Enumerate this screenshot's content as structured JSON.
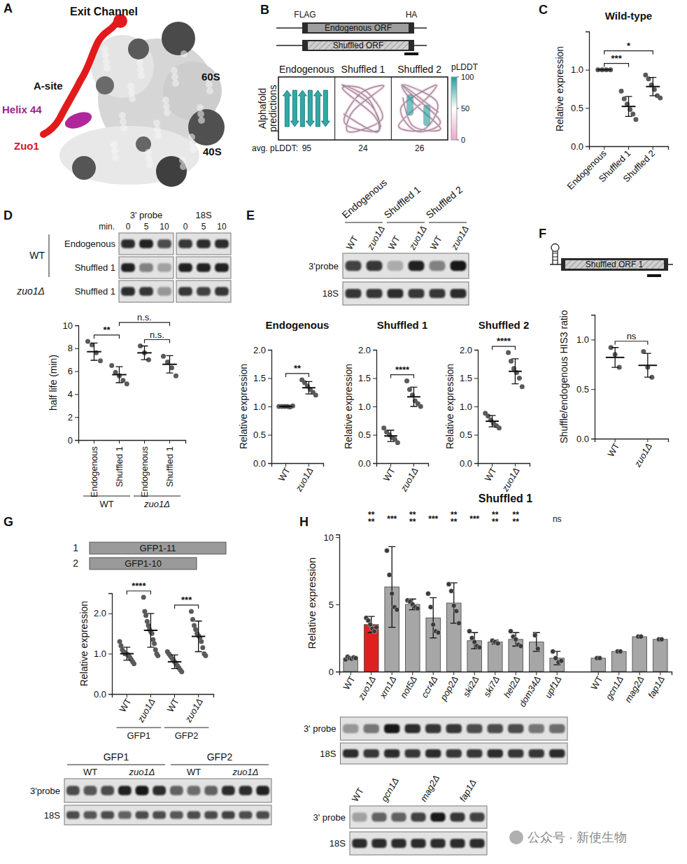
{
  "chart_data": [
    {
      "type": "dot",
      "title": "Wild-type",
      "y_label": "Relative expression",
      "categories": [
        "Endogenous",
        "Shuffled 1",
        "Shuffled 2"
      ],
      "points": [
        [
          1.0,
          1.0,
          1.0,
          1.0
        ],
        [
          0.72,
          0.62,
          0.55,
          0.48,
          0.42,
          0.35
        ],
        [
          0.93,
          0.88,
          0.8,
          0.74,
          0.66,
          0.63
        ]
      ],
      "mean": [
        1.0,
        0.52,
        0.78
      ],
      "sd": [
        0.0,
        0.13,
        0.12
      ],
      "ylim": [
        0,
        1.5
      ],
      "yticks": [
        {
          "value": 0,
          "label": "0.0"
        },
        {
          "value": 0.5,
          "label": "0.5"
        },
        {
          "value": 1,
          "label": "1.0"
        }
      ],
      "significance": [
        {
          "from": 0,
          "to": 1,
          "label": "***"
        },
        {
          "from": 0,
          "to": 2,
          "label": "*"
        }
      ]
    },
    {
      "type": "dot",
      "y_label": "half life (min)",
      "categories": [
        "Endogenous",
        "Shuffled 1",
        "Endogenous",
        "Shuffled 1"
      ],
      "groups": [
        {
          "label": "WT",
          "members": [
            0,
            1
          ]
        },
        {
          "label": "zuo1Δ",
          "members": [
            2,
            3
          ]
        }
      ],
      "points": [
        [
          8.6,
          8.3,
          7.6,
          6.9
        ],
        [
          6.5,
          5.9,
          5.6,
          5.2,
          4.9
        ],
        [
          8.2,
          7.6,
          7.0
        ],
        [
          7.3,
          6.8,
          6.3,
          5.6
        ]
      ],
      "mean": [
        7.7,
        5.7,
        7.6,
        6.6
      ],
      "sd": [
        0.75,
        0.7,
        0.6,
        0.75
      ],
      "ylim": [
        0,
        10
      ],
      "yticks": [
        0,
        2,
        4,
        6,
        8,
        10
      ],
      "significance": [
        {
          "from": 0,
          "to": 1,
          "label": "**"
        },
        {
          "from": 2,
          "to": 3,
          "label": "n.s."
        },
        {
          "from": 1,
          "to": 3,
          "label": "n.s."
        }
      ]
    },
    {
      "type": "dot",
      "title": "Endogenous",
      "y_label": "Relative expression",
      "categories": [
        "WT",
        "zuo1Δ"
      ],
      "points": [
        [
          1.0,
          1.0,
          1.0,
          1.0,
          0.99,
          1.01
        ],
        [
          1.47,
          1.42,
          1.36,
          1.3,
          1.25,
          1.2
        ]
      ],
      "mean": [
        1.0,
        1.33
      ],
      "sd": [
        0.01,
        0.11
      ],
      "ylim": [
        0,
        2
      ],
      "yticks": [
        {
          "value": 0,
          "label": "0.0"
        },
        {
          "value": 0.5,
          "label": "0.5"
        },
        {
          "value": 1,
          "label": "1.0"
        },
        {
          "value": 1.5,
          "label": "1.5"
        },
        {
          "value": 2,
          "label": "2.0"
        }
      ],
      "significance": [
        {
          "from": 0,
          "to": 1,
          "label": "**"
        }
      ]
    },
    {
      "type": "dot",
      "title": "Shuffled 1",
      "y_label": "Relative expression",
      "categories": [
        "WT",
        "zuo1Δ"
      ],
      "points": [
        [
          0.62,
          0.55,
          0.5,
          0.45,
          0.42,
          0.36
        ],
        [
          1.45,
          1.3,
          1.2,
          1.1,
          1.05,
          1.0
        ]
      ],
      "mean": [
        0.48,
        1.17
      ],
      "sd": [
        0.1,
        0.17
      ],
      "ylim": [
        0,
        2
      ],
      "yticks": [
        {
          "value": 0,
          "label": "0.0"
        },
        {
          "value": 0.5,
          "label": "0.5"
        },
        {
          "value": 1,
          "label": "1.0"
        },
        {
          "value": 1.5,
          "label": "1.5"
        },
        {
          "value": 2,
          "label": "2.0"
        }
      ],
      "significance": [
        {
          "from": 0,
          "to": 1,
          "label": "****"
        }
      ]
    },
    {
      "type": "dot",
      "title": "Shuffled 2",
      "y_label": "Relative expression",
      "categories": [
        "WT",
        "zuo1Δ"
      ],
      "points": [
        [
          0.88,
          0.83,
          0.76,
          0.7,
          0.66,
          0.62
        ],
        [
          1.95,
          1.8,
          1.67,
          1.6,
          1.5,
          1.35
        ]
      ],
      "mean": [
        0.74,
        1.62
      ],
      "sd": [
        0.1,
        0.22
      ],
      "ylim": [
        0,
        2
      ],
      "yticks": [
        {
          "value": 0,
          "label": "0.0"
        },
        {
          "value": 0.5,
          "label": "0.5"
        },
        {
          "value": 1,
          "label": "1.0"
        },
        {
          "value": 1.5,
          "label": "1.5"
        },
        {
          "value": 2,
          "label": "2.0"
        }
      ],
      "significance": [
        {
          "from": 0,
          "to": 1,
          "label": "****"
        }
      ]
    },
    {
      "type": "dot",
      "y_label": "Shuffle/endogenous HIS3 ratio",
      "categories": [
        "WT",
        "zuo1Δ"
      ],
      "points": [
        [
          0.92,
          0.85,
          0.72
        ],
        [
          0.88,
          0.72,
          0.62
        ]
      ],
      "mean": [
        0.82,
        0.74
      ],
      "sd": [
        0.1,
        0.12
      ],
      "ylim": [
        0,
        1.25
      ],
      "yticks": [
        {
          "value": 0,
          "label": "0.0"
        },
        {
          "value": 0.5,
          "label": "0.5"
        },
        {
          "value": 1,
          "label": "1.0"
        }
      ],
      "significance": [
        {
          "from": 0,
          "to": 1,
          "label": "ns"
        }
      ]
    },
    {
      "type": "dot",
      "y_label": "Relative expression",
      "categories": [
        "WT",
        "zuo1Δ",
        "WT",
        "zuo1Δ"
      ],
      "groups": [
        {
          "label": "GFP1",
          "members": [
            0,
            1
          ]
        },
        {
          "label": "GFP2",
          "members": [
            2,
            3
          ]
        }
      ],
      "points": [
        [
          1.3,
          1.2,
          1.1,
          1.05,
          1.0,
          1.0,
          0.98,
          0.95,
          0.9,
          0.85,
          0.8,
          0.75
        ],
        [
          2.4,
          2.05,
          1.95,
          1.8,
          1.7,
          1.6,
          1.55,
          1.5,
          1.35,
          1.25,
          1.1,
          1.0,
          0.95
        ],
        [
          1.05,
          1.0,
          0.95,
          0.9,
          0.85,
          0.8,
          0.75,
          0.7,
          0.65,
          0.6,
          0.55
        ],
        [
          2.05,
          1.85,
          1.7,
          1.6,
          1.5,
          1.45,
          1.4,
          1.3,
          1.15,
          1.0,
          0.95
        ]
      ],
      "mean": [
        1.0,
        1.58,
        0.8,
        1.43
      ],
      "sd": [
        0.16,
        0.42,
        0.17,
        0.38
      ],
      "ylim": [
        0,
        2.5
      ],
      "yticks": [
        {
          "value": 0,
          "label": "0.0"
        },
        {
          "value": 1,
          "label": "1.0"
        },
        {
          "value": 2,
          "label": "2.0"
        }
      ],
      "significance": [
        {
          "from": 0,
          "to": 1,
          "label": "****"
        },
        {
          "from": 2,
          "to": 3,
          "label": "***"
        }
      ]
    },
    {
      "type": "bar",
      "title": "Shuffled 1",
      "y_label": "Relative expression",
      "categories": [
        "WT",
        "zuo1Δ",
        "xrn1Δ",
        "not5Δ",
        "ccr4Δ",
        "pop2Δ",
        "ski2Δ",
        "ski7Δ",
        "hel2Δ",
        "dom34Δ",
        "upf1Δ",
        "WT",
        "gcn1Δ",
        "mag2Δ",
        "fap1Δ"
      ],
      "values": [
        1.0,
        3.5,
        6.3,
        5.0,
        4.0,
        5.1,
        2.3,
        2.2,
        2.4,
        2.2,
        1.0,
        1.0,
        1.5,
        2.6,
        2.4
      ],
      "error": [
        0.1,
        0.6,
        3.0,
        0.4,
        1.5,
        1.5,
        0.6,
        0.15,
        0.5,
        0.7,
        0.5,
        null,
        null,
        null,
        null
      ],
      "points": [
        [
          0.9,
          1.1,
          1.0,
          0.95,
          1.05,
          1.0
        ],
        [
          4.0,
          3.8,
          3.5,
          3.2,
          3.0,
          3.3
        ],
        [
          9.0,
          7.2,
          5.8,
          4.8,
          4.6
        ],
        [
          5.3,
          5.2,
          5.0,
          4.8,
          4.7
        ],
        [
          5.8,
          4.8,
          3.5,
          3.0,
          2.9
        ],
        [
          6.5,
          6.0,
          4.9,
          4.5,
          3.6
        ],
        [
          3.0,
          2.5,
          2.2,
          1.9,
          1.8
        ],
        [
          2.3,
          2.2,
          2.1
        ],
        [
          3.0,
          2.6,
          2.4,
          2.0,
          1.9
        ],
        [
          2.7,
          1.7
        ],
        [
          1.5,
          1.0,
          0.7,
          0.8
        ],
        [
          1.0,
          1.0
        ],
        [
          1.5,
          1.5
        ],
        [
          2.6,
          2.6
        ],
        [
          2.4,
          2.4
        ]
      ],
      "colors": [
        "#a6a6a6",
        "#e02020",
        "#a6a6a6",
        "#a6a6a6",
        "#a6a6a6",
        "#a6a6a6",
        "#a6a6a6",
        "#a6a6a6",
        "#a6a6a6",
        "#a6a6a6",
        "#a6a6a6",
        "#a6a6a6",
        "#a6a6a6",
        "#a6a6a6",
        "#a6a6a6"
      ],
      "ylim": [
        0,
        10.2
      ],
      "yticks": [
        0,
        5,
        10
      ],
      "significance": [
        {
          "at": 1,
          "label": "****"
        },
        {
          "at": 2,
          "label": "***"
        },
        {
          "at": 3,
          "label": "****"
        },
        {
          "at": 4,
          "label": "***"
        },
        {
          "at": 5,
          "label": "****"
        },
        {
          "at": 6,
          "label": "***"
        },
        {
          "at": 7,
          "label": "****"
        },
        {
          "at": 8,
          "label": "****"
        },
        {
          "at": 10,
          "label": "ns"
        }
      ]
    }
  ],
  "figure": {
    "panel_letters": [
      "A",
      "B",
      "C",
      "D",
      "E",
      "F",
      "G",
      "H"
    ],
    "panel_a": {
      "labels": {
        "exit_channel": "Exit Channel",
        "large_subunit": "60S",
        "a_site": "A-site",
        "helix": "Helix 44",
        "zuo1": "Zuo1",
        "small_subunit": "40S"
      }
    },
    "panel_b": {
      "construct": {
        "left_tag": "FLAG",
        "right_tag": "HA",
        "orfs": [
          "Endogenous ORF",
          "Shuffled ORF"
        ]
      },
      "predictions": {
        "label": "Alphafold predictions",
        "titles": [
          "Endogenous",
          "Shuffled 1",
          "Shuffled 2"
        ],
        "avg_label": "avg. pLDDT:",
        "avg_plddt": [
          95,
          24,
          26
        ],
        "colorbar": {
          "label": "pLDDT",
          "range": [
            0,
            100
          ],
          "ticks": [
            0,
            50,
            100
          ]
        }
      }
    },
    "panel_d_gel": {
      "column_heads": [
        "3' probe",
        "18S"
      ],
      "time_label": "min.",
      "times": [
        0,
        5,
        10
      ],
      "row_groups": [
        {
          "label": "WT",
          "rows": [
            "Endogenous",
            "Shuffled 1"
          ]
        },
        {
          "label": "zuo1Δ",
          "rows": [
            "Shuffled 1"
          ]
        }
      ],
      "probe_bands": [
        [
          0.85,
          0.9,
          0.7
        ],
        [
          0.9,
          0.45,
          0.3
        ],
        [
          0.85,
          0.8,
          0.35
        ]
      ],
      "rrna_bands": [
        [
          0.8,
          0.85,
          0.85
        ],
        [
          0.9,
          0.9,
          0.9
        ],
        [
          0.8,
          0.75,
          0.8
        ]
      ]
    },
    "panel_e_gel": {
      "groups": [
        {
          "label": "Endogenous",
          "lanes": [
            "WT",
            "zuo1Δ"
          ]
        },
        {
          "label": "Shuffled 1",
          "lanes": [
            "WT",
            "zuo1Δ"
          ]
        },
        {
          "label": "Shuffled 2",
          "lanes": [
            "WT",
            "zuo1Δ"
          ]
        }
      ],
      "rows": [
        "3'probe",
        "18S"
      ],
      "bands": [
        [
          0.75,
          0.8,
          0.25,
          0.9,
          0.45,
          0.95
        ],
        [
          0.8,
          0.8,
          0.85,
          0.8,
          0.8,
          0.85
        ]
      ]
    },
    "panel_f_construct": {
      "orf": "Shuffled ORF 1"
    },
    "panel_g_constructs": [
      {
        "number": "1",
        "label": "GFP1-11"
      },
      {
        "number": "2",
        "label": "GFP1-10"
      }
    ],
    "panel_g_gel": {
      "groups": [
        {
          "label": "GFP1",
          "subgroups": [
            {
              "label": "WT",
              "lanes": 3
            },
            {
              "label": "zuo1Δ",
              "lanes": 3
            }
          ]
        },
        {
          "label": "GFP2",
          "subgroups": [
            {
              "label": "WT",
              "lanes": 3
            },
            {
              "label": "zuo1Δ",
              "lanes": 3
            }
          ]
        }
      ],
      "rows": [
        "3'probe",
        "18S"
      ],
      "bands": [
        [
          0.7,
          0.65,
          0.7,
          0.9,
          0.95,
          0.85,
          0.6,
          0.55,
          0.6,
          0.85,
          0.85,
          0.9
        ],
        [
          0.7,
          0.65,
          0.7,
          0.6,
          0.7,
          0.7,
          0.65,
          0.7,
          0.7,
          0.75,
          0.7,
          0.7
        ]
      ]
    },
    "panel_h_gels": [
      {
        "rows": [
          "3' probe",
          "18S"
        ],
        "bands": [
          [
            0.35,
            0.5,
            0.95,
            0.85,
            0.8,
            0.8,
            0.7,
            0.7,
            0.7,
            0.5,
            0.55
          ],
          [
            0.85,
            0.8,
            0.85,
            0.8,
            0.85,
            0.8,
            0.8,
            0.85,
            0.8,
            0.8,
            0.85
          ]
        ]
      },
      {
        "groups": [
          {
            "label": "WT",
            "lanes": 1
          },
          {
            "label": "gcn1Δ",
            "lanes": 2
          },
          {
            "label": "mag2Δ",
            "lanes": 2
          },
          {
            "label": "fap1Δ",
            "lanes": 2
          }
        ],
        "rows": [
          "3' probe",
          "18S"
        ],
        "bands": [
          [
            0.3,
            0.6,
            0.6,
            0.75,
            0.95,
            0.8,
            0.75
          ],
          [
            0.85,
            0.85,
            0.85,
            0.85,
            0.85,
            0.85,
            0.85
          ]
        ]
      }
    ],
    "watermark": "公众号 · 新使生物"
  }
}
